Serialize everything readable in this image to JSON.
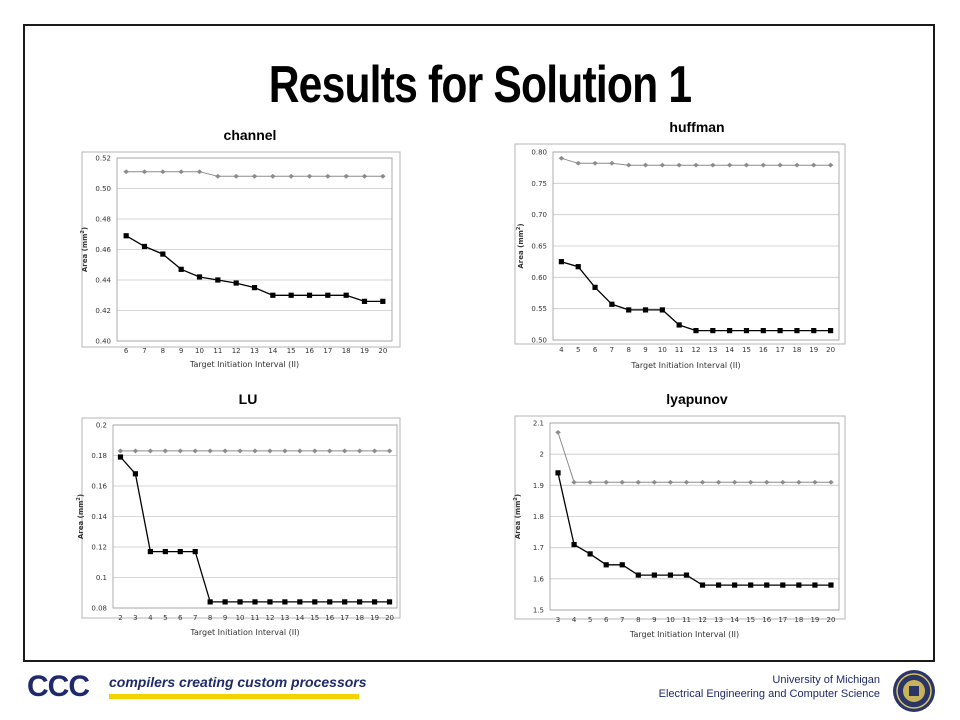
{
  "slide": {
    "title": "Results for Solution 1"
  },
  "footer": {
    "logo_text": "CCC",
    "tagline": "compilers creating custom processors",
    "university": "University of Michigan",
    "department": "Electrical Engineering and Computer Science"
  },
  "colors": {
    "upper_series": "#8c8c8c",
    "lower_series": "#000000",
    "title_text": "#000000",
    "footer_text": "#1e2a6b",
    "logo_yellow": "#f2d300"
  },
  "chart_data": [
    {
      "type": "line",
      "title": "channel",
      "xlabel": "Target Initiation Interval (II)",
      "ylabel": "Area (mm",
      "ylabel_sup": "2",
      "ylabel_close": ")",
      "x": [
        6,
        7,
        8,
        9,
        10,
        11,
        12,
        13,
        14,
        15,
        16,
        17,
        18,
        19,
        20
      ],
      "ylim": [
        0.4,
        0.52
      ],
      "yticks": [
        0.4,
        0.42,
        0.44,
        0.46,
        0.48,
        0.5,
        0.52
      ],
      "ytick_labels": [
        "0.40",
        "0.42",
        "0.44",
        "0.46",
        "0.48",
        "0.50",
        "0.52"
      ],
      "grid": true,
      "series": [
        {
          "values": [
            0.511,
            0.511,
            0.511,
            0.511,
            0.511,
            0.508,
            0.508,
            0.508,
            0.508,
            0.508,
            0.508,
            0.508,
            0.508,
            0.508,
            0.508
          ]
        },
        {
          "values": [
            0.469,
            0.462,
            0.457,
            0.447,
            0.442,
            0.44,
            0.438,
            0.435,
            0.43,
            0.43,
            0.43,
            0.43,
            0.43,
            0.426,
            0.426
          ]
        }
      ]
    },
    {
      "type": "line",
      "title": "huffman",
      "xlabel": "Target Initiation Interval (II)",
      "ylabel": "Area (mm",
      "ylabel_sup": "2",
      "ylabel_close": ")",
      "x": [
        4,
        5,
        6,
        7,
        8,
        9,
        10,
        11,
        12,
        13,
        14,
        15,
        16,
        17,
        18,
        19,
        20
      ],
      "ylim": [
        0.5,
        0.8
      ],
      "yticks": [
        0.5,
        0.55,
        0.6,
        0.65,
        0.7,
        0.75,
        0.8
      ],
      "ytick_labels": [
        "0.50",
        "0.55",
        "0.60",
        "0.65",
        "0.70",
        "0.75",
        "0.80"
      ],
      "grid": true,
      "series": [
        {
          "values": [
            0.79,
            0.782,
            0.782,
            0.782,
            0.779,
            0.779,
            0.779,
            0.779,
            0.779,
            0.779,
            0.779,
            0.779,
            0.779,
            0.779,
            0.779,
            0.779,
            0.779
          ]
        },
        {
          "values": [
            0.625,
            0.617,
            0.584,
            0.557,
            0.548,
            0.548,
            0.548,
            0.524,
            0.515,
            0.515,
            0.515,
            0.515,
            0.515,
            0.515,
            0.515,
            0.515,
            0.515
          ]
        }
      ]
    },
    {
      "type": "line",
      "title": "LU",
      "xlabel": "Target Initiation Interval (II)",
      "ylabel": "Area (mm",
      "ylabel_sup": "2",
      "ylabel_close": ")",
      "x": [
        2,
        3,
        4,
        5,
        6,
        7,
        8,
        9,
        10,
        11,
        12,
        13,
        14,
        15,
        16,
        17,
        18,
        19,
        20
      ],
      "ylim": [
        0.08,
        0.2
      ],
      "yticks": [
        0.08,
        0.1,
        0.12,
        0.14,
        0.16,
        0.18,
        0.2
      ],
      "ytick_labels": [
        "0.08",
        "0.1",
        "0.12",
        "0.14",
        "0.16",
        "0.18",
        "0.2"
      ],
      "grid": true,
      "series": [
        {
          "values": [
            0.183,
            0.183,
            0.183,
            0.183,
            0.183,
            0.183,
            0.183,
            0.183,
            0.183,
            0.183,
            0.183,
            0.183,
            0.183,
            0.183,
            0.183,
            0.183,
            0.183,
            0.183,
            0.183
          ]
        },
        {
          "values": [
            0.179,
            0.168,
            0.117,
            0.117,
            0.117,
            0.117,
            0.084,
            0.084,
            0.084,
            0.084,
            0.084,
            0.084,
            0.084,
            0.084,
            0.084,
            0.084,
            0.084,
            0.084,
            0.084
          ]
        }
      ]
    },
    {
      "type": "line",
      "title": "lyapunov",
      "xlabel": "Target Initiation Interval (II)",
      "ylabel": "Area (mm",
      "ylabel_sup": "2",
      "ylabel_close": ")",
      "x": [
        3,
        4,
        5,
        6,
        7,
        8,
        9,
        10,
        11,
        12,
        13,
        14,
        15,
        16,
        17,
        18,
        19,
        20
      ],
      "ylim": [
        1.5,
        2.1
      ],
      "yticks": [
        1.5,
        1.6,
        1.7,
        1.8,
        1.9,
        2.0,
        2.1
      ],
      "ytick_labels": [
        "1.5",
        "1.6",
        "1.7",
        "1.8",
        "1.9",
        "2",
        "2.1"
      ],
      "grid": true,
      "series": [
        {
          "values": [
            2.07,
            1.91,
            1.91,
            1.91,
            1.91,
            1.91,
            1.91,
            1.91,
            1.91,
            1.91,
            1.91,
            1.91,
            1.91,
            1.91,
            1.91,
            1.91,
            1.91,
            1.91
          ]
        },
        {
          "values": [
            1.94,
            1.71,
            1.68,
            1.645,
            1.645,
            1.612,
            1.612,
            1.612,
            1.612,
            1.58,
            1.58,
            1.58,
            1.58,
            1.58,
            1.58,
            1.58,
            1.58,
            1.58
          ]
        }
      ]
    }
  ]
}
